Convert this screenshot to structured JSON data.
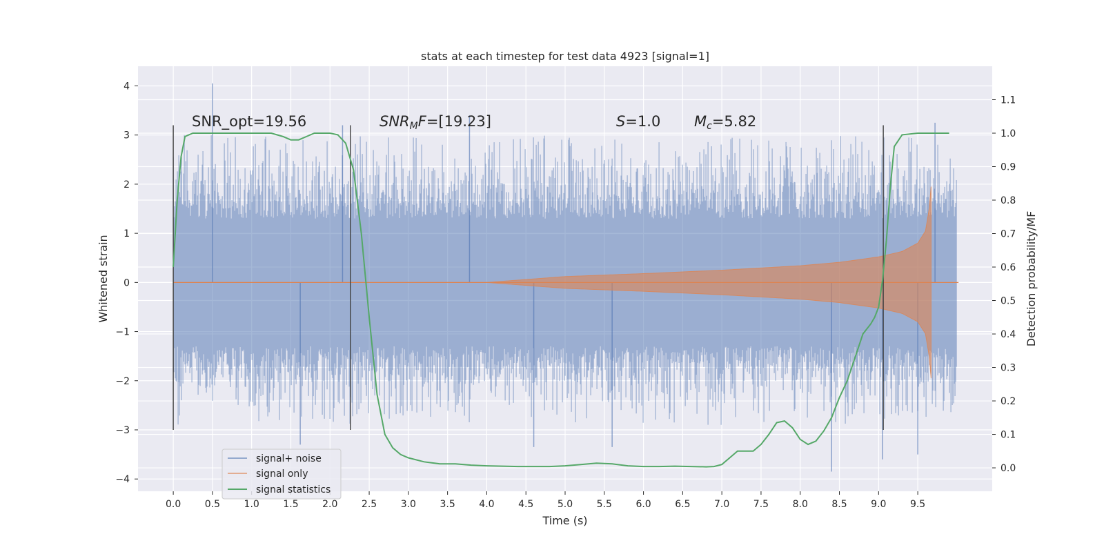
{
  "chart_data": {
    "type": "line",
    "title": "stats at each timestep for test data 4923 [signal=1]",
    "xlabel": "Time (s)",
    "ylabel": "Whitened strain",
    "y2label": "Detection probability/MF",
    "xlim": [
      -0.45,
      10.45
    ],
    "ylim": [
      -4.25,
      4.4
    ],
    "y2lim": [
      -0.07,
      1.2
    ],
    "x_ticks": [
      0.0,
      0.5,
      1.0,
      1.5,
      2.0,
      2.5,
      3.0,
      3.5,
      4.0,
      4.5,
      5.0,
      5.5,
      6.0,
      6.5,
      7.0,
      7.5,
      8.0,
      8.5,
      9.0,
      9.5
    ],
    "x_tick_labels": [
      "0.0",
      "0.5",
      "1.0",
      "1.5",
      "2.0",
      "2.5",
      "3.0",
      "3.5",
      "4.0",
      "4.5",
      "5.0",
      "5.5",
      "6.0",
      "6.5",
      "7.0",
      "7.5",
      "8.0",
      "8.5",
      "9.0",
      "9.5"
    ],
    "y_ticks": [
      4,
      3,
      2,
      1,
      0,
      -1,
      -2,
      -3,
      -4
    ],
    "y_tick_labels": [
      "4",
      "3",
      "2",
      "1",
      "0",
      "−1",
      "−2",
      "−3",
      "−4"
    ],
    "y2_ticks": [
      1.1,
      1.0,
      0.9,
      0.8,
      0.7,
      0.6,
      0.5,
      0.4,
      0.3,
      0.2,
      0.1,
      0.0
    ],
    "y2_tick_labels": [
      "1.1",
      "1.0",
      "0.9",
      "0.8",
      "0.7",
      "0.6",
      "0.5",
      "0.4",
      "0.3",
      "0.2",
      "0.1",
      "0.0"
    ],
    "grid": true,
    "legend_position": "lower-left",
    "background": "#eaeaf2",
    "series": [
      {
        "name": "signal+ noise",
        "axis": "left",
        "color": "#4c72b0",
        "opacity": 0.5,
        "t_start": 0.0,
        "t_end": 9.99,
        "typical_amplitude": 1.3,
        "peaks": [
          {
            "x": 0.5,
            "y": 4.05
          },
          {
            "x": 1.62,
            "y": -3.3
          },
          {
            "x": 2.16,
            "y": 3.2
          },
          {
            "x": 3.78,
            "y": 3.4
          },
          {
            "x": 4.6,
            "y": -3.35
          },
          {
            "x": 5.6,
            "y": -3.35
          },
          {
            "x": 8.4,
            "y": -3.85
          },
          {
            "x": 9.05,
            "y": -3.6
          },
          {
            "x": 9.5,
            "y": -3.5
          },
          {
            "x": 9.72,
            "y": 3.25
          }
        ]
      },
      {
        "name": "signal only",
        "axis": "left",
        "color": "#dd8452",
        "opacity": 0.6,
        "envelope_x": [
          0.0,
          4.0,
          5.0,
          6.0,
          7.0,
          8.0,
          8.5,
          9.0,
          9.3,
          9.5,
          9.6,
          9.65,
          9.67
        ],
        "envelope_y": [
          0.0,
          0.0,
          0.12,
          0.18,
          0.25,
          0.34,
          0.41,
          0.52,
          0.63,
          0.8,
          1.05,
          1.55,
          1.95
        ],
        "merger_time": 9.67
      },
      {
        "name": "signal statistics",
        "axis": "right",
        "color": "#55a868",
        "x": [
          0.0,
          0.05,
          0.1,
          0.15,
          0.25,
          0.35,
          0.5,
          0.75,
          1.0,
          1.25,
          1.4,
          1.5,
          1.6,
          1.7,
          1.8,
          2.0,
          2.1,
          2.2,
          2.3,
          2.4,
          2.5,
          2.6,
          2.7,
          2.8,
          2.9,
          3.0,
          3.2,
          3.4,
          3.6,
          3.8,
          4.0,
          4.2,
          4.4,
          4.6,
          4.8,
          5.0,
          5.2,
          5.4,
          5.6,
          5.8,
          6.0,
          6.2,
          6.4,
          6.6,
          6.8,
          6.9,
          7.0,
          7.1,
          7.2,
          7.3,
          7.4,
          7.5,
          7.6,
          7.7,
          7.8,
          7.9,
          8.0,
          8.1,
          8.2,
          8.3,
          8.4,
          8.5,
          8.6,
          8.7,
          8.8,
          8.9,
          8.95,
          9.0,
          9.05,
          9.1,
          9.15,
          9.2,
          9.3,
          9.5,
          9.7,
          9.9
        ],
        "y": [
          0.6,
          0.8,
          0.93,
          0.99,
          1.0,
          1.0,
          1.0,
          1.0,
          1.0,
          1.0,
          0.99,
          0.98,
          0.98,
          0.99,
          1.0,
          1.0,
          0.995,
          0.97,
          0.89,
          0.7,
          0.45,
          0.22,
          0.1,
          0.06,
          0.04,
          0.03,
          0.018,
          0.012,
          0.012,
          0.008,
          0.006,
          0.005,
          0.004,
          0.004,
          0.004,
          0.006,
          0.01,
          0.014,
          0.012,
          0.006,
          0.004,
          0.004,
          0.005,
          0.004,
          0.003,
          0.004,
          0.01,
          0.03,
          0.05,
          0.05,
          0.05,
          0.07,
          0.1,
          0.135,
          0.14,
          0.12,
          0.085,
          0.07,
          0.08,
          0.11,
          0.15,
          0.21,
          0.26,
          0.33,
          0.4,
          0.43,
          0.45,
          0.48,
          0.56,
          0.68,
          0.84,
          0.96,
          0.995,
          1.0,
          1.0,
          1.0
        ]
      }
    ],
    "vlines": [
      {
        "x": 0.0,
        "y0": -3.0,
        "y1": 3.2
      },
      {
        "x": 2.26,
        "y0": -3.0,
        "y1": 3.2
      },
      {
        "x": 9.06,
        "y0": -3.0,
        "y1": 3.2
      }
    ],
    "annotations": [
      {
        "prefix": "SNR_opt=19.56",
        "italic": "",
        "sub": "",
        "suffix": ""
      },
      {
        "prefix": "",
        "italic": "SNR",
        "sub": "M",
        "italic2": "F",
        "suffix": "=[19.23]"
      },
      {
        "prefix": "",
        "italic": "S",
        "sub": "",
        "suffix": "=1.0"
      },
      {
        "prefix": "",
        "italic": "M",
        "sub": "c",
        "suffix": "=5.82"
      }
    ]
  }
}
